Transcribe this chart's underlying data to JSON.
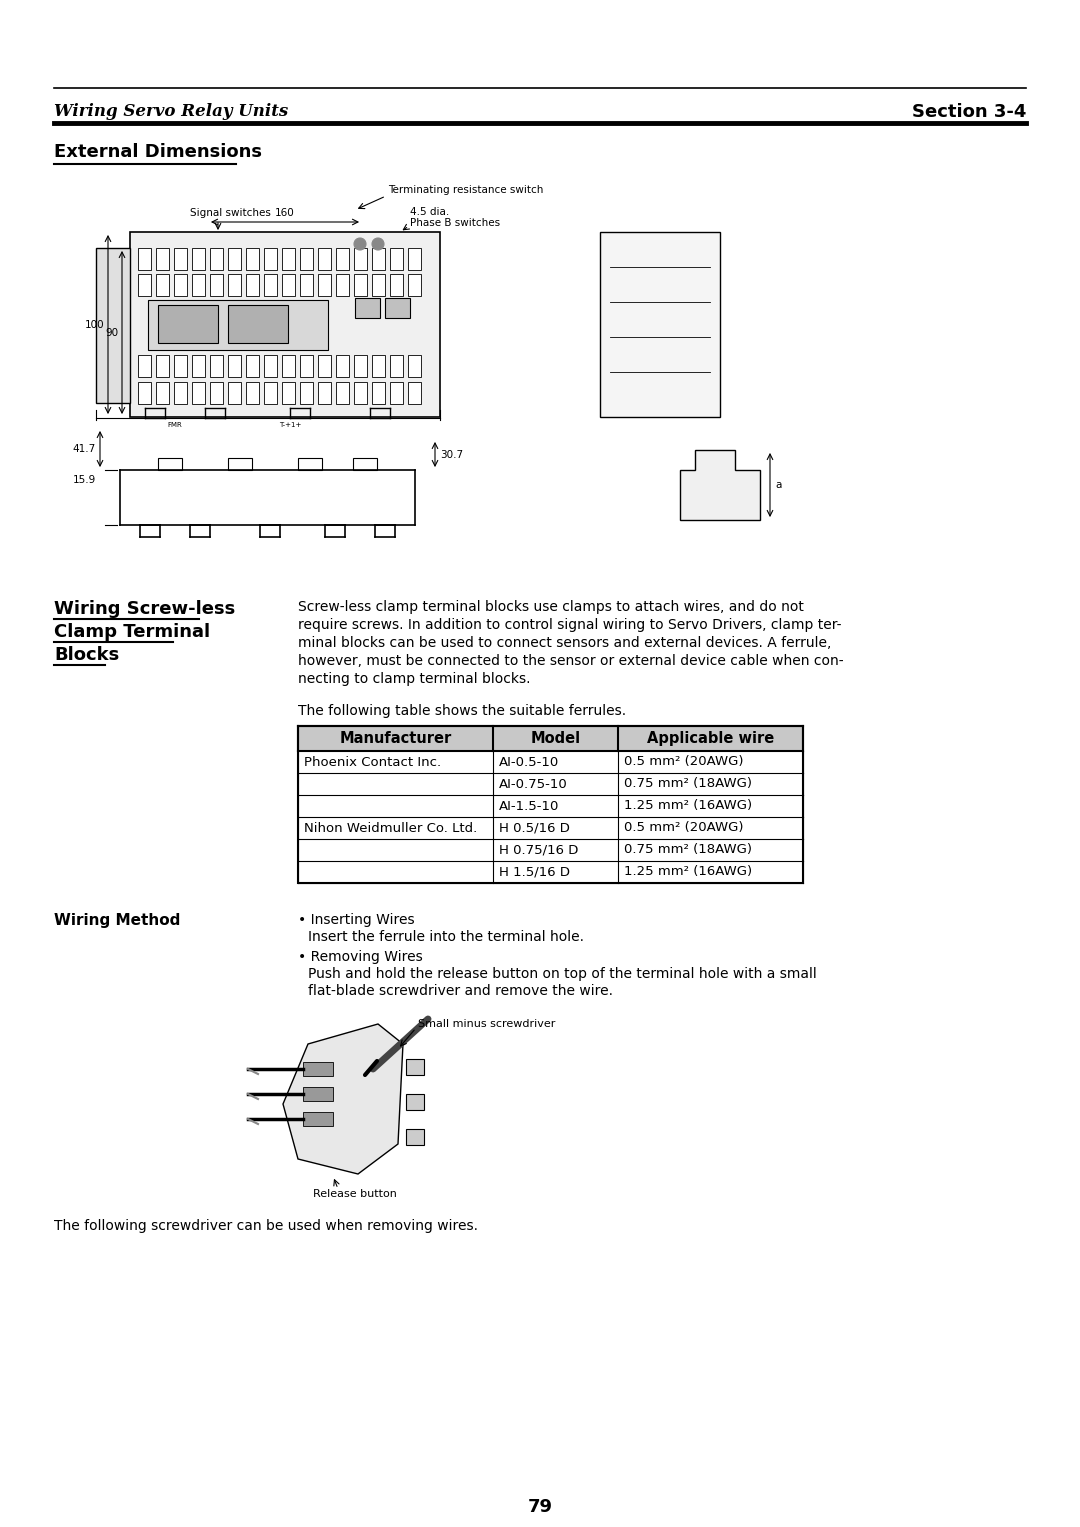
{
  "page_title_left": "Wiring Servo Relay Units",
  "page_title_right": "Section 3-4",
  "section_heading": "External Dimensions",
  "section2_heading_lines": [
    "Wiring Screw-less",
    "Clamp Terminal",
    "Blocks"
  ],
  "section3_heading": "Wiring Method",
  "body_lines": [
    "Screw-less clamp terminal blocks use clamps to attach wires, and do not",
    "require screws. In addition to control signal wiring to Servo Drivers, clamp ter-",
    "minal blocks can be used to connect sensors and external devices. A ferrule,",
    "however, must be connected to the sensor or external device cable when con-",
    "necting to clamp terminal blocks."
  ],
  "table_intro": "The following table shows the suitable ferrules.",
  "table_headers": [
    "Manufacturer",
    "Model",
    "Applicable wire"
  ],
  "table_rows": [
    [
      "Phoenix Contact Inc.",
      "AI-0.5-10",
      "0.5 mm² (20AWG)"
    ],
    [
      "",
      "AI-0.75-10",
      "0.75 mm² (18AWG)"
    ],
    [
      "",
      "AI-1.5-10",
      "1.25 mm² (16AWG)"
    ],
    [
      "Nihon Weidmuller Co. Ltd.",
      "H 0.5/16 D",
      "0.5 mm² (20AWG)"
    ],
    [
      "",
      "H 0.75/16 D",
      "0.75 mm² (18AWG)"
    ],
    [
      "",
      "H 1.5/16 D",
      "1.25 mm² (16AWG)"
    ]
  ],
  "bullet1_head": "• Inserting Wires",
  "bullet1_body": "Insert the ferrule into the terminal hole.",
  "bullet2_head": "• Removing Wires",
  "bullet2_body": [
    "Push and hold the release button on top of the terminal hole with a small",
    "flat-blade screwdriver and remove the wire."
  ],
  "screwdriver_label": "Small minus screwdriver",
  "release_label": "Release button",
  "bottom_text": "The following screwdriver can be used when removing wires.",
  "page_number": "79",
  "bg_color": "#ffffff",
  "dim_160": "160",
  "dim_100": "100",
  "dim_90": "90",
  "dim_41_7": "41.7",
  "dim_15_9": "15.9",
  "dim_30_7": "30.7",
  "label_term_res": "Terminating resistance switch",
  "label_signal": "Signal switches",
  "label_4_5": "4.5 dia.",
  "label_phase_b": "Phase B switches"
}
